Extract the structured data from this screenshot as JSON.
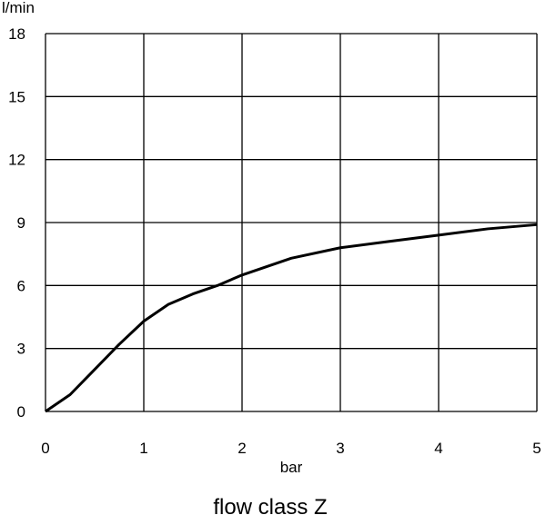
{
  "chart_data": {
    "type": "line",
    "title": "flow class Z",
    "x_label": "bar",
    "y_label": "l/min",
    "x": [
      0,
      0.25,
      0.5,
      0.75,
      1,
      1.25,
      1.5,
      1.75,
      2,
      2.5,
      3,
      3.5,
      4,
      4.5,
      5
    ],
    "series": [
      {
        "color": "#000000",
        "values": [
          0,
          0.8,
          2,
          3.2,
          4.3,
          5.1,
          5.6,
          6,
          6.5,
          7.3,
          7.8,
          8.1,
          8.4,
          8.7,
          8.9
        ]
      }
    ],
    "xlim": [
      0,
      5
    ],
    "xticks": [
      0,
      1,
      2,
      3,
      4,
      5
    ],
    "ylim": [
      0,
      18
    ],
    "yticks": [
      0,
      3,
      6,
      9,
      12,
      15,
      18
    ],
    "grid": true
  }
}
